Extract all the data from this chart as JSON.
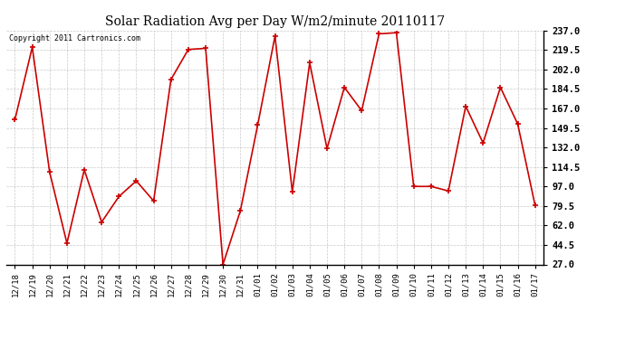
{
  "title": "Solar Radiation Avg per Day W/m2/minute 20110117",
  "copyright": "Copyright 2011 Cartronics.com",
  "labels": [
    "12/18",
    "12/19",
    "12/20",
    "12/21",
    "12/22",
    "12/23",
    "12/24",
    "12/25",
    "12/26",
    "12/27",
    "12/28",
    "12/29",
    "12/30",
    "12/31",
    "01/01",
    "01/02",
    "01/03",
    "01/04",
    "01/05",
    "01/06",
    "01/07",
    "01/08",
    "01/09",
    "01/10",
    "01/11",
    "01/12",
    "01/13",
    "01/14",
    "01/15",
    "01/16",
    "01/17"
  ],
  "values": [
    157,
    222,
    110,
    46,
    112,
    65,
    88,
    102,
    84,
    193,
    220,
    221,
    27,
    75,
    152,
    232,
    92,
    208,
    131,
    186,
    165,
    234,
    235,
    97,
    97,
    93,
    169,
    136,
    186,
    153,
    80
  ],
  "line_color": "#cc0000",
  "marker_color": "#cc0000",
  "background_color": "#ffffff",
  "grid_color": "#bbbbbb",
  "ylim_min": 27.0,
  "ylim_max": 237.0,
  "yticks": [
    27.0,
    44.5,
    62.0,
    79.5,
    97.0,
    114.5,
    132.0,
    149.5,
    167.0,
    184.5,
    202.0,
    219.5,
    237.0
  ],
  "title_fontsize": 10,
  "copyright_fontsize": 6,
  "xtick_fontsize": 6.5,
  "ytick_fontsize": 7.5
}
